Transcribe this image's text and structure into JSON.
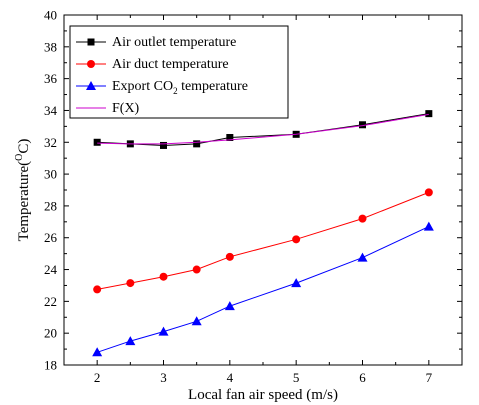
{
  "chart_data": {
    "type": "line",
    "title": "",
    "xlabel": "Local fan air speed (m/s)",
    "ylabel": {
      "prefix": "Temperature(",
      "superscript": "O",
      "suffix": "C)"
    },
    "xlim": [
      1.5,
      7.5
    ],
    "ylim": [
      18,
      40
    ],
    "xticks": [
      2,
      3,
      4,
      5,
      6,
      7
    ],
    "xticklabels": [
      "2",
      "3",
      "4",
      "5",
      "6",
      "7"
    ],
    "yticks": [
      18,
      20,
      22,
      24,
      26,
      28,
      30,
      32,
      34,
      36,
      38,
      40
    ],
    "yticklabels": [
      "18",
      "20",
      "22",
      "24",
      "26",
      "28",
      "30",
      "32",
      "34",
      "36",
      "38",
      "40"
    ],
    "grid": false,
    "legend_position": "top-left",
    "series": [
      {
        "name": "Air outlet  temperature",
        "marker": "square",
        "color": "#000000",
        "x": [
          2,
          2.5,
          3,
          3.5,
          4,
          5,
          6,
          7
        ],
        "y": [
          32.0,
          31.9,
          31.8,
          31.9,
          32.3,
          32.5,
          33.1,
          33.8
        ]
      },
      {
        "name": "Air duct  temperature",
        "marker": "circle",
        "color": "#ff0000",
        "x": [
          2,
          2.5,
          3,
          3.5,
          4,
          5,
          6,
          7
        ],
        "y": [
          22.75,
          23.15,
          23.55,
          24.0,
          24.8,
          25.9,
          27.2,
          28.85
        ]
      },
      {
        "name": "Export CO2 temperature",
        "name_parts": {
          "before": "Export CO",
          "sub": "2",
          "after": " temperature"
        },
        "marker": "triangle",
        "color": "#0000ff",
        "x": [
          2,
          2.5,
          3,
          3.5,
          4,
          5,
          6,
          7
        ],
        "y": [
          18.8,
          19.5,
          20.1,
          20.75,
          21.7,
          23.15,
          24.75,
          26.7
        ]
      },
      {
        "name": "F(X)",
        "marker": "none",
        "color": "#cc00cc",
        "x": [
          2,
          2.5,
          3,
          3.5,
          4,
          5,
          6,
          7
        ],
        "y": [
          31.95,
          31.9,
          31.9,
          32.0,
          32.15,
          32.5,
          33.05,
          33.75
        ]
      }
    ]
  }
}
